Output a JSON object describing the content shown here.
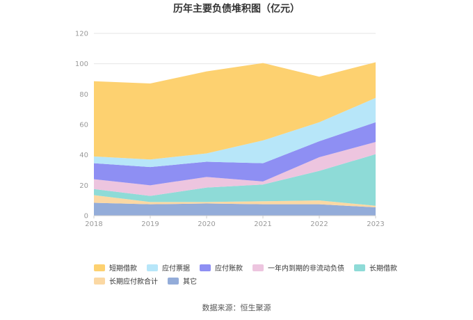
{
  "chart_data": {
    "type": "area",
    "stacked": true,
    "title": "历年主要负债堆积图（亿元）",
    "x": [
      "2018",
      "2019",
      "2020",
      "2021",
      "2022",
      "2023"
    ],
    "ylim": [
      0,
      120
    ],
    "yticks": [
      "0",
      "20",
      "40",
      "60",
      "80",
      "100",
      "120"
    ],
    "grid": true,
    "legend_position": "bottom",
    "series": [
      {
        "name": "其它",
        "color": "#93acd9",
        "values": [
          8.5,
          7.5,
          8.0,
          7.5,
          7.5,
          5.5
        ]
      },
      {
        "name": "长期应付款合计",
        "color": "#fbd8a3",
        "values": [
          5.0,
          1.5,
          1.0,
          2.0,
          2.5,
          1.0
        ]
      },
      {
        "name": "长期借款",
        "color": "#8edbd7",
        "values": [
          4.0,
          4.0,
          9.5,
          11.0,
          19.5,
          34.0
        ]
      },
      {
        "name": "一年内到期的非流动负债",
        "color": "#edc5df",
        "values": [
          6.5,
          7.0,
          7.0,
          2.0,
          9.0,
          8.0
        ]
      },
      {
        "name": "应付账款",
        "color": "#8e8ff3",
        "values": [
          10.5,
          12.0,
          10.0,
          12.0,
          10.5,
          13.0
        ]
      },
      {
        "name": "应付票据",
        "color": "#b7e6f9",
        "values": [
          4.5,
          5.0,
          5.5,
          15.0,
          12.5,
          16.0
        ]
      },
      {
        "name": "短期借款",
        "color": "#fdd170",
        "values": [
          49.5,
          50.0,
          54.0,
          51.0,
          30.0,
          23.5
        ]
      }
    ],
    "legend_order": [
      "短期借款",
      "应付票据",
      "应付账款",
      "一年内到期的非流动负债",
      "长期借款",
      "长期应付款合计",
      "其它"
    ]
  },
  "source_text": "数据来源：恒生聚源"
}
